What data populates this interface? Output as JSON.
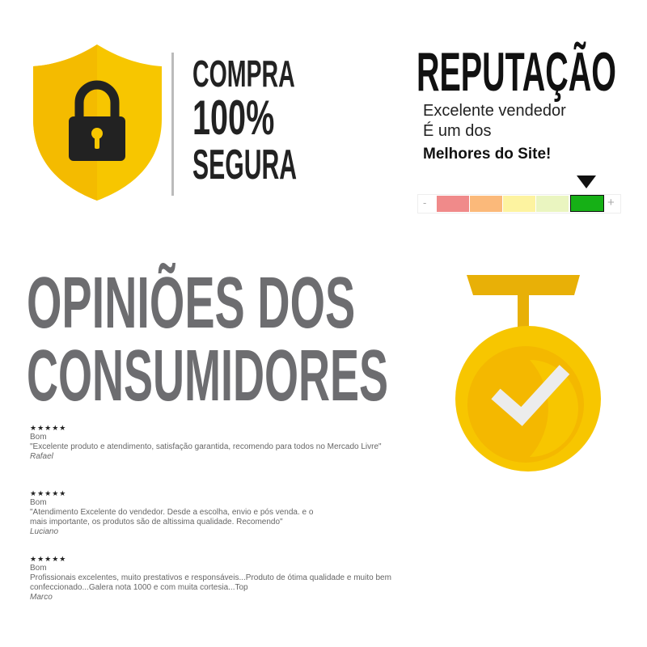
{
  "secure": {
    "icon": "shield-lock-icon",
    "line1": "COMPRA",
    "line2": "100%",
    "line3": "SEGURA",
    "shield_color": "#f7c600"
  },
  "reputation": {
    "title": "REPUTAÇÃO",
    "line1": "Excelente vendedor",
    "line2": "É um dos",
    "line3": "Melhores do Site!",
    "minus": "-",
    "plus": "+",
    "scale_colors": [
      "#f08a8a",
      "#fbb97a",
      "#fdf3a0",
      "#eaf5c0",
      "#16b016"
    ],
    "selected_level": 5,
    "levels": 5
  },
  "opinions": {
    "title_line1": "OPINIÕES DOS",
    "title_line2": "CONSUMIDORES",
    "reviews": [
      {
        "stars": "★★★★★",
        "rating": "Bom",
        "text": "\"Excelente produto e atendimento, satisfação garantida, recomendo para todos no Mercado Livre\"",
        "author": "Rafael"
      },
      {
        "stars": "★★★★★",
        "rating": "Bom",
        "text": "\"Atendimento Excelente do vendedor. Desde a escolha, envio e pós venda. e o mais importante, os produtos são de altissima qualidade. Recomendo\"",
        "author": "Luciano"
      },
      {
        "stars": "★★★★★",
        "rating": "Bom",
        "text": "Profissionais excelentes, muito prestativos e responsáveis...Produto de ótima qualidade e muito bem confeccionado...Galera nota 1000 e com muita cortesia...Top",
        "author": "Marco"
      }
    ]
  },
  "medal": {
    "icon": "medal-check-icon",
    "color": "#f7c600"
  }
}
